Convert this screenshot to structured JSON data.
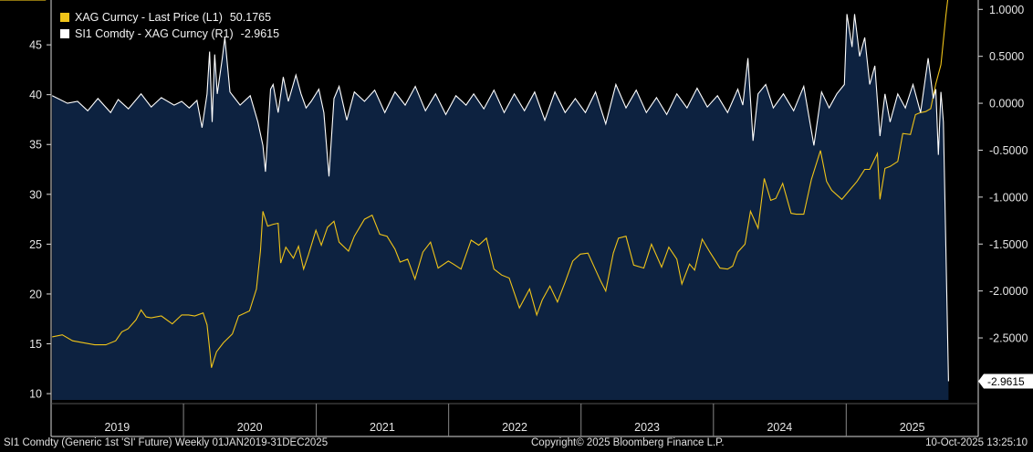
{
  "chart_data": {
    "type": "line",
    "x_range": [
      "2019-01-01",
      "2025-12-31"
    ],
    "x_tick_labels": [
      "2019",
      "2020",
      "2021",
      "2022",
      "2023",
      "2024",
      "2025"
    ],
    "ylim_left": [
      9,
      49.5
    ],
    "yticks_left": [
      10,
      15,
      20,
      25,
      30,
      35,
      40,
      45
    ],
    "ylim_right": [
      -3.2,
      1.1
    ],
    "yticks_right": [
      "-2.5000",
      "-2.0000",
      "-1.5000",
      "-1.0000",
      "-0.5000",
      "0.0000",
      "0.5000",
      "1.0000"
    ],
    "yticks_right_values": [
      -2.5,
      -2.0,
      -1.5,
      -1.0,
      -0.5,
      0.0,
      0.5,
      1.0
    ],
    "grid": false,
    "legend_position": "top-left",
    "series": [
      {
        "name": "XAG Curncy - Last Price (L1)",
        "last_value": "50.1765",
        "axis": "left",
        "color": "#f0c419",
        "points": [
          [
            "2019-01-04",
            15.7
          ],
          [
            "2019-02-01",
            15.9
          ],
          [
            "2019-03-01",
            15.3
          ],
          [
            "2019-04-01",
            15.1
          ],
          [
            "2019-05-01",
            14.9
          ],
          [
            "2019-06-01",
            14.9
          ],
          [
            "2019-06-28",
            15.3
          ],
          [
            "2019-07-15",
            16.2
          ],
          [
            "2019-08-01",
            16.5
          ],
          [
            "2019-08-23",
            17.4
          ],
          [
            "2019-09-06",
            18.4
          ],
          [
            "2019-09-20",
            17.7
          ],
          [
            "2019-10-04",
            17.6
          ],
          [
            "2019-11-01",
            17.8
          ],
          [
            "2019-12-01",
            17.0
          ],
          [
            "2019-12-27",
            17.9
          ],
          [
            "2020-01-15",
            17.9
          ],
          [
            "2020-02-01",
            17.8
          ],
          [
            "2020-02-24",
            18.1
          ],
          [
            "2020-03-06",
            16.9
          ],
          [
            "2020-03-13",
            14.5
          ],
          [
            "2020-03-18",
            12.6
          ],
          [
            "2020-04-01",
            14.2
          ],
          [
            "2020-04-20",
            15.1
          ],
          [
            "2020-05-15",
            16.0
          ],
          [
            "2020-06-01",
            17.8
          ],
          [
            "2020-07-01",
            18.3
          ],
          [
            "2020-07-20",
            20.5
          ],
          [
            "2020-07-31",
            24.3
          ],
          [
            "2020-08-07",
            28.3
          ],
          [
            "2020-08-20",
            26.8
          ],
          [
            "2020-09-04",
            27.0
          ],
          [
            "2020-09-18",
            27.1
          ],
          [
            "2020-09-25",
            23.1
          ],
          [
            "2020-10-09",
            24.7
          ],
          [
            "2020-10-30",
            23.6
          ],
          [
            "2020-11-13",
            24.8
          ],
          [
            "2020-11-27",
            22.5
          ],
          [
            "2020-12-11",
            24.0
          ],
          [
            "2020-12-31",
            26.4
          ],
          [
            "2021-01-15",
            24.9
          ],
          [
            "2021-02-01",
            26.7
          ],
          [
            "2021-02-19",
            27.3
          ],
          [
            "2021-03-05",
            25.2
          ],
          [
            "2021-03-31",
            24.3
          ],
          [
            "2021-04-16",
            25.8
          ],
          [
            "2021-05-14",
            27.5
          ],
          [
            "2021-06-04",
            27.9
          ],
          [
            "2021-06-25",
            26.0
          ],
          [
            "2021-07-15",
            25.8
          ],
          [
            "2021-08-06",
            24.5
          ],
          [
            "2021-08-20",
            23.2
          ],
          [
            "2021-09-10",
            23.5
          ],
          [
            "2021-09-30",
            21.5
          ],
          [
            "2021-10-22",
            24.2
          ],
          [
            "2021-11-12",
            25.2
          ],
          [
            "2021-12-03",
            22.6
          ],
          [
            "2021-12-31",
            23.3
          ],
          [
            "2022-01-14",
            23.0
          ],
          [
            "2022-02-04",
            22.5
          ],
          [
            "2022-03-04",
            25.4
          ],
          [
            "2022-03-25",
            24.9
          ],
          [
            "2022-04-15",
            25.6
          ],
          [
            "2022-05-06",
            22.5
          ],
          [
            "2022-05-27",
            21.9
          ],
          [
            "2022-06-17",
            21.6
          ],
          [
            "2022-07-15",
            18.6
          ],
          [
            "2022-08-12",
            20.5
          ],
          [
            "2022-09-01",
            17.9
          ],
          [
            "2022-09-16",
            19.4
          ],
          [
            "2022-10-07",
            20.8
          ],
          [
            "2022-10-28",
            19.2
          ],
          [
            "2022-11-18",
            21.2
          ],
          [
            "2022-12-09",
            23.3
          ],
          [
            "2022-12-30",
            24.0
          ],
          [
            "2023-01-20",
            24.1
          ],
          [
            "2023-02-24",
            21.3
          ],
          [
            "2023-03-10",
            20.3
          ],
          [
            "2023-03-31",
            24.1
          ],
          [
            "2023-04-14",
            25.6
          ],
          [
            "2023-05-05",
            25.8
          ],
          [
            "2023-05-26",
            22.9
          ],
          [
            "2023-06-23",
            22.6
          ],
          [
            "2023-07-14",
            25.0
          ],
          [
            "2023-08-11",
            22.7
          ],
          [
            "2023-08-31",
            24.7
          ],
          [
            "2023-09-22",
            23.5
          ],
          [
            "2023-10-06",
            21.0
          ],
          [
            "2023-10-27",
            23.0
          ],
          [
            "2023-11-10",
            22.4
          ],
          [
            "2023-12-01",
            25.5
          ],
          [
            "2023-12-22",
            24.2
          ],
          [
            "2024-01-19",
            22.6
          ],
          [
            "2024-02-09",
            22.5
          ],
          [
            "2024-02-23",
            22.8
          ],
          [
            "2024-03-08",
            24.2
          ],
          [
            "2024-03-28",
            25.0
          ],
          [
            "2024-04-12",
            28.3
          ],
          [
            "2024-05-03",
            26.6
          ],
          [
            "2024-05-20",
            31.6
          ],
          [
            "2024-06-07",
            29.4
          ],
          [
            "2024-06-21",
            29.6
          ],
          [
            "2024-07-10",
            31.1
          ],
          [
            "2024-08-02",
            28.1
          ],
          [
            "2024-08-16",
            28.0
          ],
          [
            "2024-09-06",
            28.0
          ],
          [
            "2024-09-27",
            31.5
          ],
          [
            "2024-10-22",
            34.4
          ],
          [
            "2024-11-08",
            31.3
          ],
          [
            "2024-11-22",
            30.4
          ],
          [
            "2024-12-20",
            29.5
          ],
          [
            "2025-01-10",
            30.4
          ],
          [
            "2025-01-31",
            31.3
          ],
          [
            "2025-02-21",
            32.5
          ],
          [
            "2025-03-07",
            32.5
          ],
          [
            "2025-03-28",
            34.1
          ],
          [
            "2025-04-04",
            29.5
          ],
          [
            "2025-04-18",
            32.6
          ],
          [
            "2025-05-02",
            32.8
          ],
          [
            "2025-05-23",
            33.3
          ],
          [
            "2025-06-06",
            36.1
          ],
          [
            "2025-06-27",
            36.0
          ],
          [
            "2025-07-11",
            38.0
          ],
          [
            "2025-07-25",
            38.2
          ],
          [
            "2025-08-08",
            38.3
          ],
          [
            "2025-08-22",
            38.6
          ],
          [
            "2025-09-05",
            41.1
          ],
          [
            "2025-09-19",
            43.0
          ],
          [
            "2025-10-03",
            48.0
          ],
          [
            "2025-10-10",
            50.18
          ]
        ]
      },
      {
        "name": "SI1 Comdty - XAG Curncy (R1)",
        "last_value": "-2.9615",
        "axis": "right",
        "color": "#ffffff",
        "points": [
          [
            "2019-01-04",
            0.08
          ],
          [
            "2019-02-15",
            0.0
          ],
          [
            "2019-03-15",
            0.02
          ],
          [
            "2019-04-12",
            -0.08
          ],
          [
            "2019-05-10",
            0.05
          ],
          [
            "2019-06-14",
            -0.1
          ],
          [
            "2019-07-05",
            0.04
          ],
          [
            "2019-08-02",
            -0.06
          ],
          [
            "2019-09-06",
            0.1
          ],
          [
            "2019-10-04",
            -0.04
          ],
          [
            "2019-11-01",
            0.06
          ],
          [
            "2019-12-06",
            -0.02
          ],
          [
            "2019-12-27",
            0.02
          ],
          [
            "2020-01-17",
            -0.05
          ],
          [
            "2020-02-07",
            0.03
          ],
          [
            "2020-02-21",
            -0.26
          ],
          [
            "2020-03-06",
            0.1
          ],
          [
            "2020-03-13",
            0.55
          ],
          [
            "2020-03-20",
            -0.2
          ],
          [
            "2020-03-27",
            0.52
          ],
          [
            "2020-04-03",
            0.1
          ],
          [
            "2020-04-17",
            0.48
          ],
          [
            "2020-04-24",
            0.7
          ],
          [
            "2020-05-08",
            0.12
          ],
          [
            "2020-06-05",
            -0.02
          ],
          [
            "2020-07-03",
            0.08
          ],
          [
            "2020-07-24",
            -0.2
          ],
          [
            "2020-08-07",
            -0.45
          ],
          [
            "2020-08-14",
            -0.73
          ],
          [
            "2020-08-28",
            0.15
          ],
          [
            "2020-09-04",
            0.2
          ],
          [
            "2020-09-18",
            -0.1
          ],
          [
            "2020-10-02",
            0.28
          ],
          [
            "2020-10-16",
            0.02
          ],
          [
            "2020-11-06",
            0.3
          ],
          [
            "2020-11-20",
            0.1
          ],
          [
            "2020-12-04",
            -0.05
          ],
          [
            "2020-12-18",
            0.02
          ],
          [
            "2021-01-08",
            0.15
          ],
          [
            "2021-01-22",
            -0.1
          ],
          [
            "2021-02-05",
            -0.78
          ],
          [
            "2021-02-19",
            0.05
          ],
          [
            "2021-03-05",
            0.18
          ],
          [
            "2021-03-26",
            -0.18
          ],
          [
            "2021-04-16",
            0.12
          ],
          [
            "2021-05-14",
            0.02
          ],
          [
            "2021-06-11",
            0.14
          ],
          [
            "2021-07-09",
            -0.1
          ],
          [
            "2021-08-06",
            0.12
          ],
          [
            "2021-09-03",
            -0.02
          ],
          [
            "2021-10-01",
            0.18
          ],
          [
            "2021-10-29",
            -0.08
          ],
          [
            "2021-11-26",
            0.1
          ],
          [
            "2021-12-24",
            -0.12
          ],
          [
            "2022-01-21",
            0.08
          ],
          [
            "2022-02-18",
            -0.02
          ],
          [
            "2022-03-11",
            0.1
          ],
          [
            "2022-04-08",
            -0.06
          ],
          [
            "2022-05-06",
            0.14
          ],
          [
            "2022-06-03",
            -0.1
          ],
          [
            "2022-07-01",
            0.1
          ],
          [
            "2022-07-29",
            -0.08
          ],
          [
            "2022-08-26",
            0.12
          ],
          [
            "2022-09-23",
            -0.18
          ],
          [
            "2022-10-21",
            0.12
          ],
          [
            "2022-11-18",
            -0.1
          ],
          [
            "2022-12-16",
            0.05
          ],
          [
            "2023-01-13",
            -0.1
          ],
          [
            "2023-02-10",
            0.12
          ],
          [
            "2023-03-10",
            -0.22
          ],
          [
            "2023-04-07",
            0.2
          ],
          [
            "2023-05-05",
            -0.05
          ],
          [
            "2023-06-02",
            0.14
          ],
          [
            "2023-06-30",
            -0.1
          ],
          [
            "2023-07-28",
            0.06
          ],
          [
            "2023-08-25",
            -0.12
          ],
          [
            "2023-09-22",
            0.1
          ],
          [
            "2023-10-20",
            -0.05
          ],
          [
            "2023-11-17",
            0.16
          ],
          [
            "2023-12-15",
            -0.04
          ],
          [
            "2024-01-12",
            0.08
          ],
          [
            "2024-02-09",
            -0.1
          ],
          [
            "2024-03-08",
            0.15
          ],
          [
            "2024-03-22",
            -0.02
          ],
          [
            "2024-04-05",
            0.48
          ],
          [
            "2024-04-19",
            -0.4
          ],
          [
            "2024-05-03",
            0.1
          ],
          [
            "2024-05-24",
            0.2
          ],
          [
            "2024-06-14",
            -0.05
          ],
          [
            "2024-07-12",
            0.1
          ],
          [
            "2024-08-09",
            -0.08
          ],
          [
            "2024-09-06",
            0.18
          ],
          [
            "2024-10-04",
            -0.45
          ],
          [
            "2024-10-25",
            0.12
          ],
          [
            "2024-11-15",
            -0.05
          ],
          [
            "2024-12-06",
            0.1
          ],
          [
            "2024-12-27",
            0.2
          ],
          [
            "2025-01-03",
            0.95
          ],
          [
            "2025-01-17",
            0.6
          ],
          [
            "2025-01-24",
            0.95
          ],
          [
            "2025-02-07",
            0.5
          ],
          [
            "2025-02-21",
            0.7
          ],
          [
            "2025-03-07",
            0.2
          ],
          [
            "2025-03-21",
            0.4
          ],
          [
            "2025-04-04",
            -0.35
          ],
          [
            "2025-04-18",
            0.1
          ],
          [
            "2025-05-02",
            -0.2
          ],
          [
            "2025-05-23",
            0.1
          ],
          [
            "2025-06-13",
            -0.05
          ],
          [
            "2025-07-04",
            0.2
          ],
          [
            "2025-07-25",
            -0.1
          ],
          [
            "2025-08-15",
            0.48
          ],
          [
            "2025-08-29",
            0.05
          ],
          [
            "2025-09-05",
            0.15
          ],
          [
            "2025-09-12",
            -0.55
          ],
          [
            "2025-09-19",
            0.12
          ],
          [
            "2025-09-26",
            -0.2
          ],
          [
            "2025-10-10",
            -2.9615
          ]
        ]
      }
    ]
  },
  "colors": {
    "background": "#000000",
    "plot_fill": "#0d2240",
    "axis": "#d9d9d9",
    "tag_left": "#f0c419"
  },
  "footer": {
    "left": "SI1 Comdty (Generic 1st 'SI' Future) Weekly 01JAN2019-31DEC2025",
    "center": "Copyright© 2025 Bloomberg Finance L.P.",
    "right": "10-Oct-2025 13:25:10"
  }
}
